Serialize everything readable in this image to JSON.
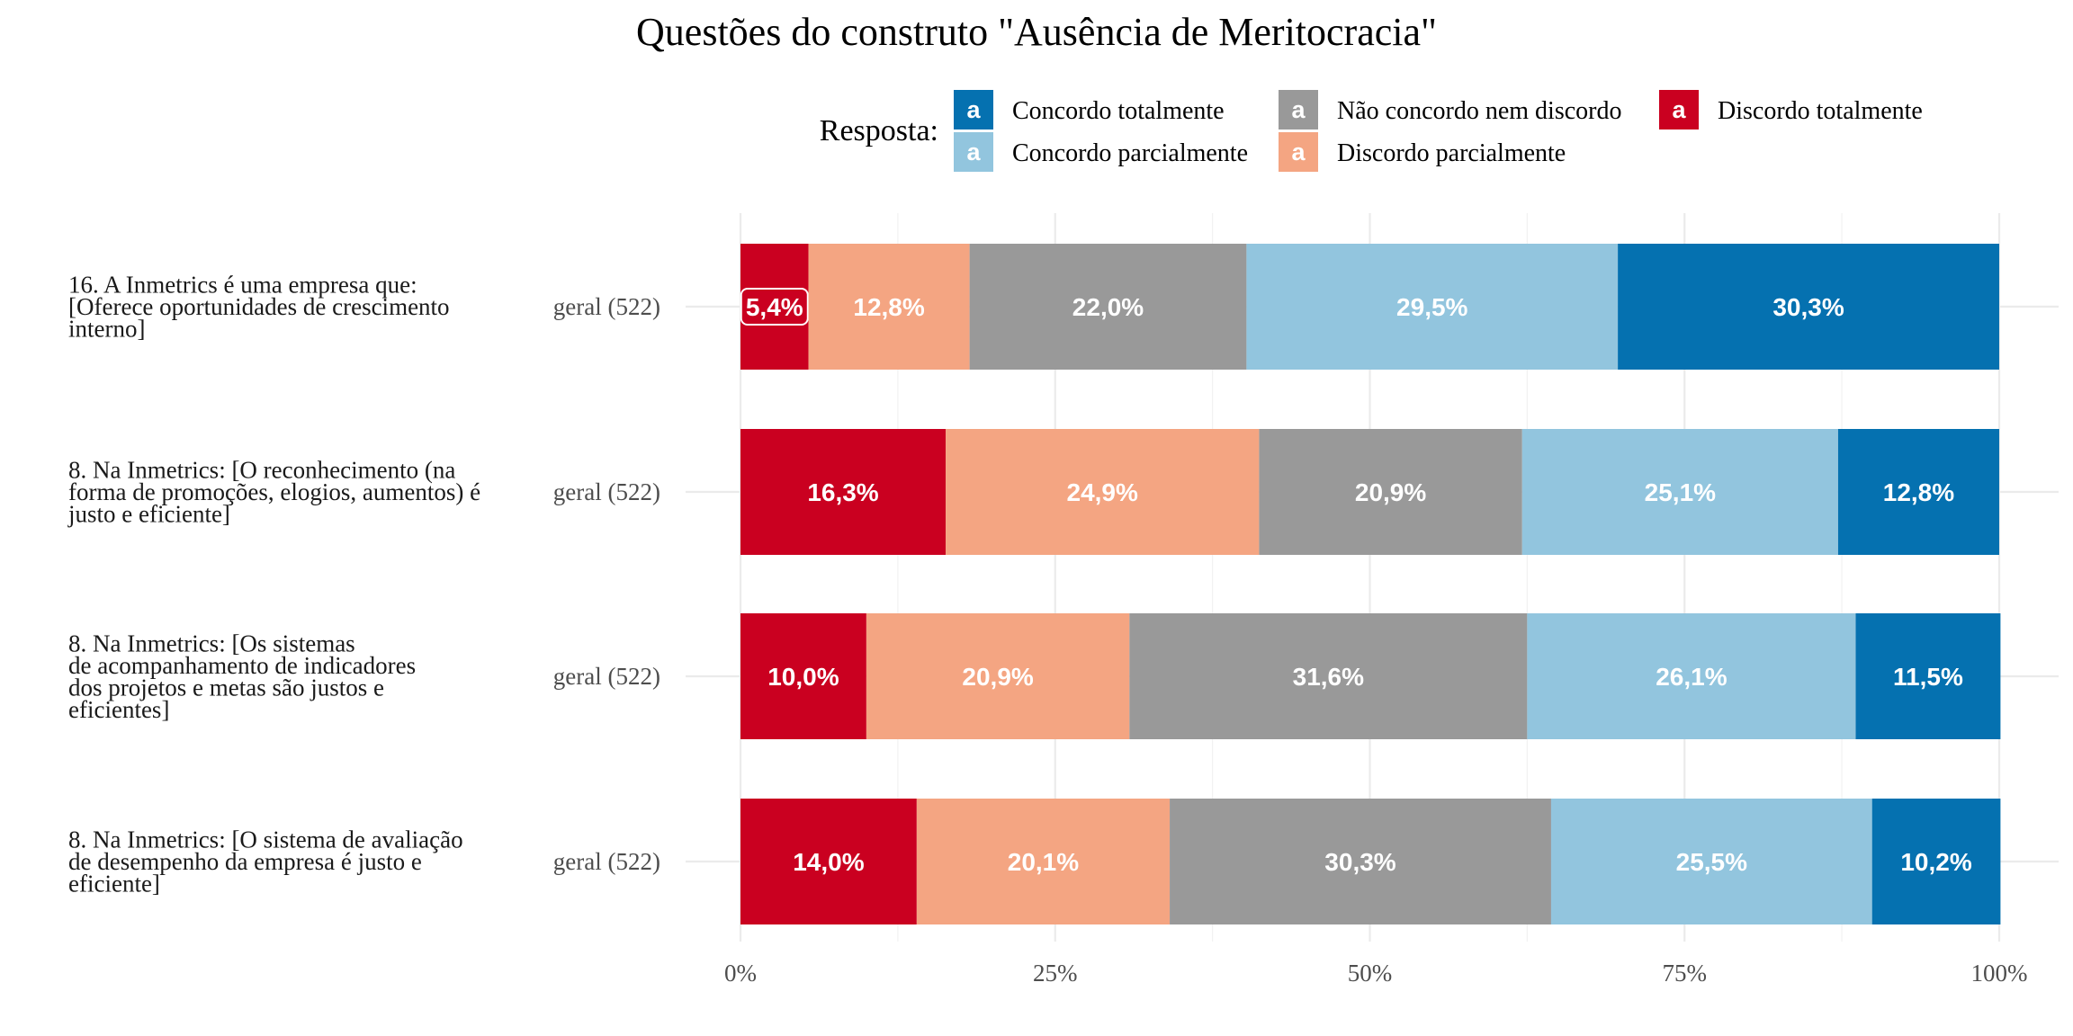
{
  "chart_data": {
    "type": "bar",
    "orientation": "horizontal",
    "stacked": "percent",
    "title": "Questões do construto \"Ausência de Meritocracia\"",
    "legend": {
      "title": "Resposta:",
      "position": "top",
      "key_glyph": "a",
      "entries": [
        {
          "name": "Concordo totalmente",
          "color": "#0571B0"
        },
        {
          "name": "Concordo parcialmente",
          "color": "#92C5DE"
        },
        {
          "name": "Não concordo nem discordo",
          "color": "#999999"
        },
        {
          "name": "Discordo parcialmente",
          "color": "#F4A582"
        },
        {
          "name": "Discordo totalmente",
          "color": "#CA0020"
        }
      ]
    },
    "categories": [
      {
        "question": [
          "16. A Inmetrics é uma empresa que:",
          "[Oferece oportunidades de crescimento",
          "interno]"
        ],
        "group": "geral (522)"
      },
      {
        "question": [
          "8. Na Inmetrics: [O reconhecimento (na",
          "forma de promoções, elogios, aumentos) é",
          "justo e eficiente]"
        ],
        "group": "geral (522)"
      },
      {
        "question": [
          "8. Na Inmetrics: [Os sistemas",
          "de acompanhamento de indicadores",
          "dos projetos e metas são justos e",
          "eficientes]"
        ],
        "group": "geral (522)"
      },
      {
        "question": [
          "8. Na Inmetrics: [O sistema de avaliação",
          "de desempenho da empresa é justo e",
          "eficiente]"
        ],
        "group": "geral (522)"
      }
    ],
    "series": [
      {
        "name": "Discordo totalmente",
        "color": "#CA0020",
        "values": [
          5.4,
          16.3,
          10.0,
          14.0
        ],
        "labels": [
          "5,4%",
          "16,3%",
          "10,0%",
          "14,0%"
        ]
      },
      {
        "name": "Discordo parcialmente",
        "color": "#F4A582",
        "values": [
          12.8,
          24.9,
          20.9,
          20.1
        ],
        "labels": [
          "12,8%",
          "24,9%",
          "20,9%",
          "20,1%"
        ]
      },
      {
        "name": "Não concordo nem discordo",
        "color": "#999999",
        "values": [
          22.0,
          20.9,
          31.6,
          30.3
        ],
        "labels": [
          "22,0%",
          "20,9%",
          "31,6%",
          "30,3%"
        ]
      },
      {
        "name": "Concordo parcialmente",
        "color": "#92C5DE",
        "values": [
          29.5,
          25.1,
          26.1,
          25.5
        ],
        "labels": [
          "29,5%",
          "25,1%",
          "26,1%",
          "25,5%"
        ]
      },
      {
        "name": "Concordo totalmente",
        "color": "#0571B0",
        "values": [
          30.3,
          12.8,
          11.5,
          10.2
        ],
        "labels": [
          "30,3%",
          "12,8%",
          "11,5%",
          "10,2%"
        ]
      }
    ],
    "xlim": [
      0,
      100
    ],
    "xticks": [
      0,
      25,
      50,
      75,
      100
    ],
    "xtick_labels": [
      "0%",
      "25%",
      "50%",
      "75%",
      "100%"
    ],
    "xlabel": "",
    "ylabel": "",
    "grid": true
  }
}
